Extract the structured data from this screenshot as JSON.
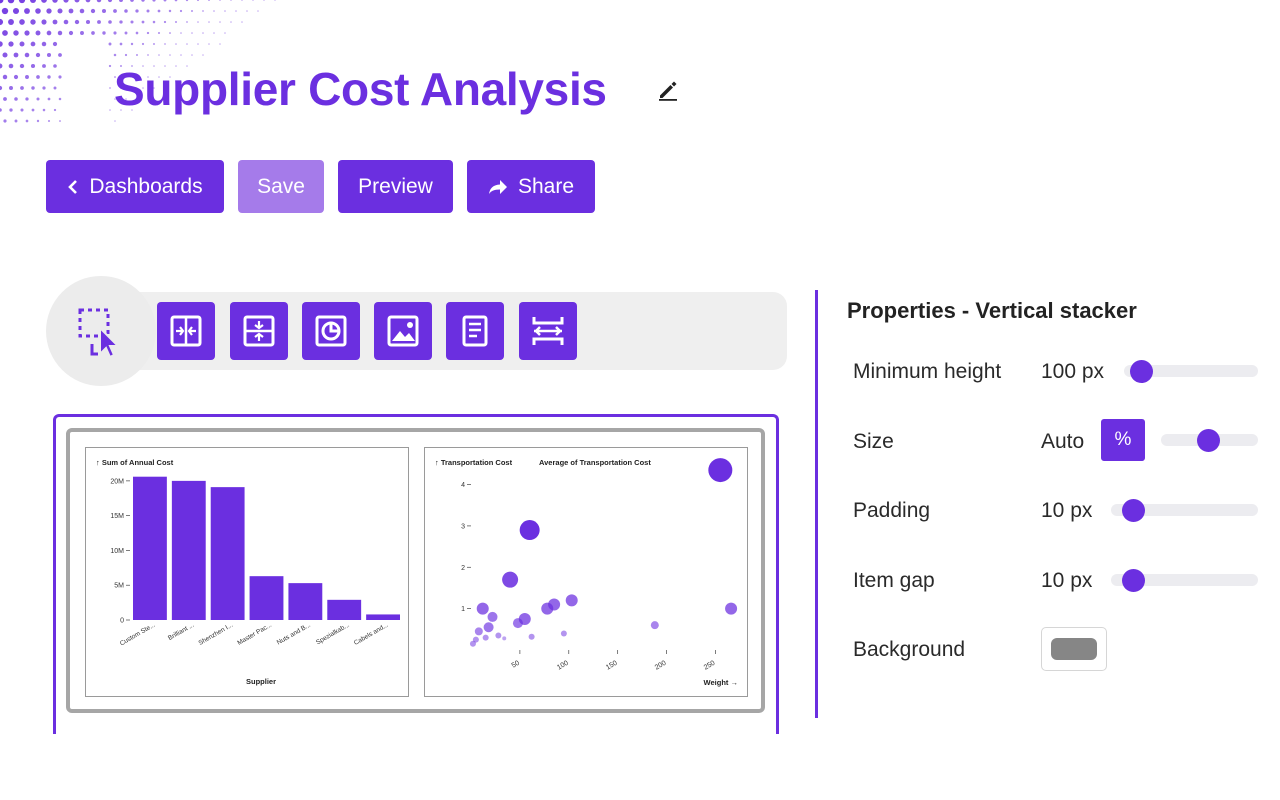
{
  "page": {
    "title": "Supplier Cost Analysis",
    "accent_color": "#6b2fe0",
    "accent_light": "#a57bea"
  },
  "actions": {
    "dashboards_label": "Dashboards",
    "save_label": "Save",
    "preview_label": "Preview",
    "share_label": "Share"
  },
  "toolbar": {
    "tools": [
      "select-icon",
      "horizontal-stacker-icon",
      "vertical-stacker-icon",
      "chart-icon",
      "image-icon",
      "text-icon",
      "spacer-icon"
    ]
  },
  "charts": [
    {
      "type": "bar",
      "y_title": "↑ Sum of Annual Cost",
      "x_title": "Supplier",
      "y_ticks": [
        "20M",
        "15M",
        "10M",
        "5M",
        "0"
      ],
      "categories": [
        "Custom Ste...",
        "Brilliant ...",
        "Shenzhen I...",
        "Master Pac...",
        "Nuts and B...",
        "Spezialkab...",
        "Cabels and..."
      ],
      "values": [
        20600000,
        20000000,
        19100000,
        6300000,
        5300000,
        2900000,
        800000
      ],
      "ylim": [
        0,
        20700000
      ]
    },
    {
      "type": "scatter",
      "y_title": "↑ Transportation Cost",
      "legend_title": "Average of Transportation Cost",
      "x_title": "Weight →",
      "y_ticks": [
        "4",
        "3",
        "2",
        "1"
      ],
      "x_ticks": [
        "50",
        "100",
        "150",
        "200",
        "250"
      ],
      "xlim": [
        0,
        270
      ],
      "ylim": [
        0,
        4.4
      ],
      "points": [
        {
          "x": 255,
          "y": 4.35,
          "r": 12
        },
        {
          "x": 60,
          "y": 2.9,
          "r": 10
        },
        {
          "x": 40,
          "y": 1.7,
          "r": 8
        },
        {
          "x": 12,
          "y": 1.0,
          "r": 6
        },
        {
          "x": 22,
          "y": 0.8,
          "r": 5
        },
        {
          "x": 18,
          "y": 0.55,
          "r": 5
        },
        {
          "x": 8,
          "y": 0.45,
          "r": 4
        },
        {
          "x": 55,
          "y": 0.75,
          "r": 6
        },
        {
          "x": 48,
          "y": 0.65,
          "r": 5
        },
        {
          "x": 78,
          "y": 1.0,
          "r": 6
        },
        {
          "x": 85,
          "y": 1.1,
          "r": 6
        },
        {
          "x": 103,
          "y": 1.2,
          "r": 6
        },
        {
          "x": 5,
          "y": 0.25,
          "r": 3
        },
        {
          "x": 15,
          "y": 0.3,
          "r": 3
        },
        {
          "x": 28,
          "y": 0.35,
          "r": 3
        },
        {
          "x": 2,
          "y": 0.15,
          "r": 3
        },
        {
          "x": 34,
          "y": 0.28,
          "r": 2
        },
        {
          "x": 62,
          "y": 0.32,
          "r": 3
        },
        {
          "x": 95,
          "y": 0.4,
          "r": 3
        },
        {
          "x": 188,
          "y": 0.6,
          "r": 4
        },
        {
          "x": 266,
          "y": 1.0,
          "r": 6
        }
      ]
    }
  ],
  "properties": {
    "title": "Properties - Vertical stacker",
    "min_height": {
      "label": "Minimum height",
      "value": "100 px",
      "level": 0.05
    },
    "size": {
      "label": "Size",
      "value": "Auto",
      "unit_button": "%",
      "level": 0.5
    },
    "padding": {
      "label": "Padding",
      "value": "10 px",
      "level": 0.05
    },
    "item_gap": {
      "label": "Item gap",
      "value": "10 px",
      "level": 0.05
    },
    "background": {
      "label": "Background",
      "color": "#868686"
    }
  }
}
